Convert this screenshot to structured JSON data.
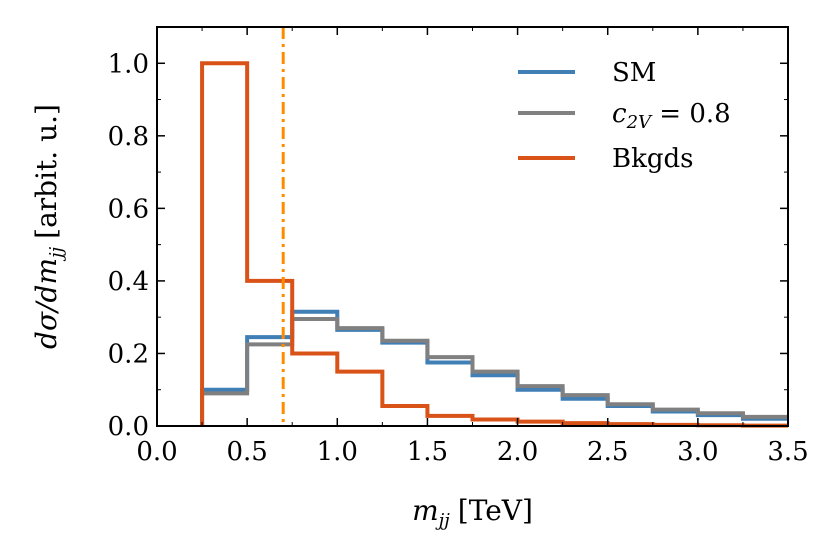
{
  "chart_data": {
    "type": "line",
    "title": "",
    "xlabel": "m_jj [TeV]",
    "ylabel": "dσ/dm_jj [arbit. u.]",
    "xlabel_parts": {
      "var": "m",
      "sub": "jj",
      "unit": "[TeV]"
    },
    "ylabel_parts": {
      "num": "dσ/dm",
      "sub": "jj",
      "unit": "[arbit. u.]"
    },
    "xlim": [
      0.0,
      3.5
    ],
    "ylim": [
      0.0,
      1.1
    ],
    "xticks": [
      "0.0",
      "0.5",
      "1.0",
      "1.5",
      "2.0",
      "2.5",
      "3.0",
      "3.5"
    ],
    "yticks": [
      "0.0",
      "0.2",
      "0.4",
      "0.6",
      "0.8",
      "1.0"
    ],
    "grid": false,
    "legend_position": "top-right",
    "bin_edges": [
      0.25,
      0.5,
      0.75,
      1.0,
      1.25,
      1.5,
      1.75,
      2.0,
      2.25,
      2.5,
      2.75,
      3.0,
      3.25,
      3.5
    ],
    "series": [
      {
        "name": "SM",
        "legend_label": "SM",
        "color": "#3f7fb5",
        "values": [
          0.1,
          0.245,
          0.315,
          0.265,
          0.23,
          0.175,
          0.14,
          0.1,
          0.075,
          0.055,
          0.04,
          0.03,
          0.02
        ]
      },
      {
        "name": "c2V = 0.8",
        "legend_label": {
          "base": "c",
          "sub": "2V",
          "rest": " = 0.8"
        },
        "color": "#808080",
        "values": [
          0.09,
          0.225,
          0.295,
          0.27,
          0.235,
          0.19,
          0.15,
          0.11,
          0.085,
          0.06,
          0.045,
          0.035,
          0.025
        ]
      },
      {
        "name": "Bkgds",
        "legend_label": "Bkgds",
        "color": "#d95319",
        "values": [
          1.0,
          0.4,
          0.2,
          0.15,
          0.055,
          0.028,
          0.018,
          0.012,
          0.008,
          0.005,
          0.003,
          0.002,
          0.001
        ]
      }
    ],
    "vertical_line": {
      "x": 0.7,
      "color": "#ff8c00",
      "style": "dash-dot"
    }
  }
}
